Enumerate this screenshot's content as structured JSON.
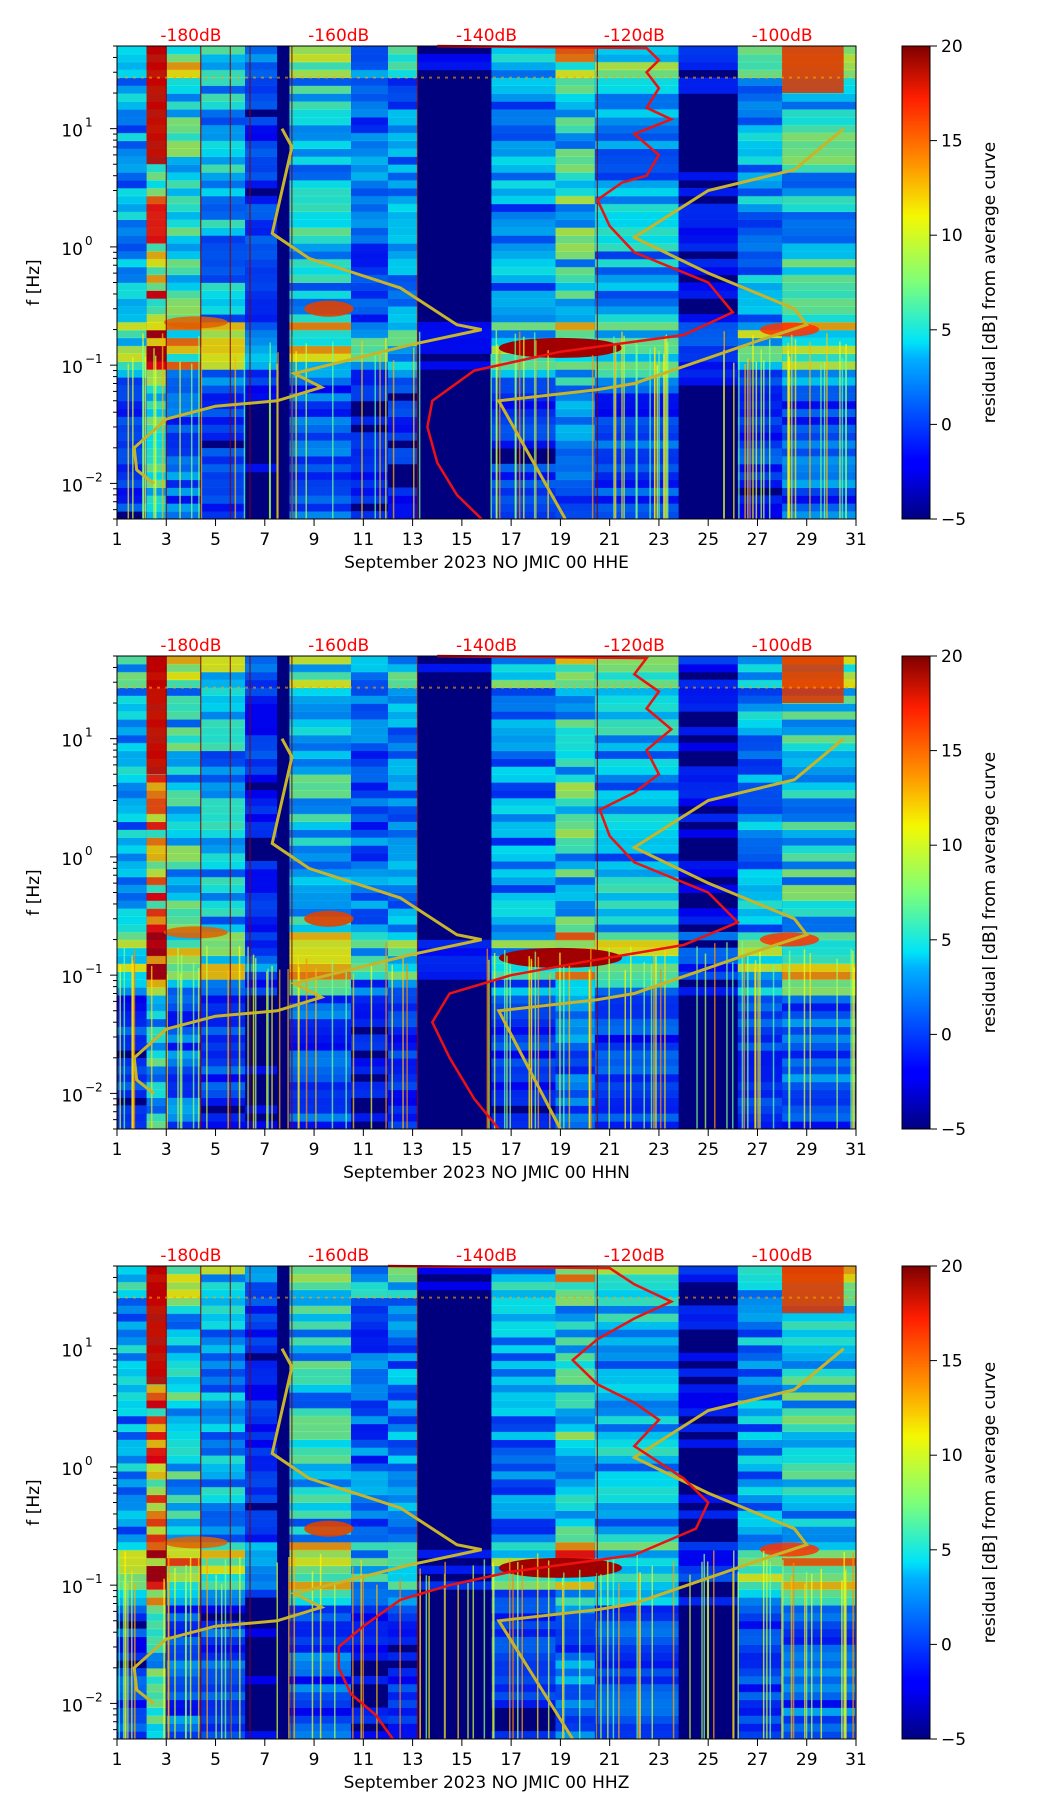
{
  "colors": {
    "psd_curve": "#ee1111",
    "noise_model": "#c8b428",
    "db_label": "#ff0000",
    "colormap": "jet"
  },
  "chart_data": [
    {
      "type": "heatmap",
      "xlabel": "September 2023 NO JMIC 00 HHE",
      "ylabel": "f [Hz]",
      "xlim": [
        1,
        31
      ],
      "ylim": [
        0.005,
        50
      ],
      "yscale": "log",
      "x_ticks": [
        "1",
        "3",
        "5",
        "7",
        "9",
        "11",
        "13",
        "15",
        "17",
        "19",
        "21",
        "23",
        "25",
        "27",
        "29",
        "31"
      ],
      "y_ticks": [
        {
          "value": 10,
          "label": "10",
          "exp": "1"
        },
        {
          "value": 1,
          "label": "10",
          "exp": "0"
        },
        {
          "value": 0.1,
          "label": "10",
          "exp": "−1"
        },
        {
          "value": 0.01,
          "label": "10",
          "exp": "−2"
        }
      ],
      "top_db_labels": [
        "-180dB",
        "-160dB",
        "-140dB",
        "-120dB",
        "-100dB"
      ],
      "top_db_positions": [
        4,
        10,
        16,
        22,
        28
      ],
      "colorbar": {
        "label": "residual [dB] from average curve",
        "min": -5,
        "max": 20,
        "ticks": [
          "20",
          "15",
          "10",
          "5",
          "0",
          "−5"
        ]
      },
      "red_curve": [
        [
          15.8,
          0.005
        ],
        [
          14.8,
          0.008
        ],
        [
          14,
          0.015
        ],
        [
          13.6,
          0.03
        ],
        [
          13.8,
          0.05
        ],
        [
          15.5,
          0.09
        ],
        [
          19,
          0.13
        ],
        [
          24,
          0.18
        ],
        [
          26,
          0.28
        ],
        [
          25,
          0.5
        ],
        [
          22,
          0.9
        ],
        [
          21,
          1.5
        ],
        [
          20.5,
          2.5
        ],
        [
          21.5,
          3.5
        ],
        [
          22.5,
          4
        ],
        [
          23,
          6
        ],
        [
          22,
          9
        ],
        [
          23.5,
          12
        ],
        [
          22.5,
          15
        ],
        [
          23,
          22
        ],
        [
          22.5,
          30
        ],
        [
          23,
          38
        ],
        [
          22.5,
          48
        ],
        [
          14,
          50
        ]
      ],
      "yellow_curve": [
        [
          19.2,
          0.005
        ],
        [
          16.5,
          0.05
        ],
        [
          20.5,
          0.062
        ],
        [
          22,
          0.07
        ],
        [
          27,
          0.16
        ],
        [
          29,
          0.22
        ],
        [
          28.5,
          0.3
        ],
        [
          25,
          0.6
        ],
        [
          22,
          1.2
        ],
        [
          25,
          3
        ],
        [
          28.5,
          4.5
        ],
        [
          30.5,
          10
        ]
      ],
      "yellow_curve_left": [
        [
          7.7,
          10
        ],
        [
          8.1,
          7
        ],
        [
          7.3,
          1.3
        ],
        [
          8.8,
          0.8
        ],
        [
          12.5,
          0.45
        ],
        [
          14.8,
          0.22
        ],
        [
          15.8,
          0.2
        ],
        [
          13,
          0.15
        ],
        [
          8.2,
          0.085
        ],
        [
          9.3,
          0.065
        ],
        [
          7.5,
          0.05
        ],
        [
          5,
          0.045
        ],
        [
          3,
          0.035
        ],
        [
          1.7,
          0.02
        ],
        [
          1.8,
          0.013
        ],
        [
          2.5,
          0.01
        ]
      ]
    },
    {
      "type": "heatmap",
      "xlabel": "September 2023 NO JMIC 00 HHN",
      "ylabel": "f [Hz]",
      "xlim": [
        1,
        31
      ],
      "ylim": [
        0.005,
        50
      ],
      "yscale": "log",
      "x_ticks": [
        "1",
        "3",
        "5",
        "7",
        "9",
        "11",
        "13",
        "15",
        "17",
        "19",
        "21",
        "23",
        "25",
        "27",
        "29",
        "31"
      ],
      "y_ticks": [
        {
          "value": 10,
          "label": "10",
          "exp": "1"
        },
        {
          "value": 1,
          "label": "10",
          "exp": "0"
        },
        {
          "value": 0.1,
          "label": "10",
          "exp": "−1"
        },
        {
          "value": 0.01,
          "label": "10",
          "exp": "−2"
        }
      ],
      "top_db_labels": [
        "-180dB",
        "-160dB",
        "-140dB",
        "-120dB",
        "-100dB"
      ],
      "top_db_positions": [
        4,
        10,
        16,
        22,
        28
      ],
      "colorbar": {
        "label": "residual [dB] from average curve",
        "min": -5,
        "max": 20,
        "ticks": [
          "20",
          "15",
          "10",
          "5",
          "0",
          "−5"
        ]
      },
      "red_curve": [
        [
          16.5,
          0.005
        ],
        [
          15.5,
          0.009
        ],
        [
          14.5,
          0.02
        ],
        [
          13.8,
          0.04
        ],
        [
          14.5,
          0.07
        ],
        [
          17,
          0.1
        ],
        [
          20,
          0.13
        ],
        [
          24,
          0.18
        ],
        [
          26.2,
          0.28
        ],
        [
          25,
          0.5
        ],
        [
          22,
          0.9
        ],
        [
          21,
          1.5
        ],
        [
          20.6,
          2.5
        ],
        [
          22,
          3.5
        ],
        [
          23,
          5
        ],
        [
          22.5,
          8
        ],
        [
          23.5,
          12
        ],
        [
          22.5,
          18
        ],
        [
          23,
          25
        ],
        [
          22,
          35
        ],
        [
          22.5,
          48
        ],
        [
          14,
          50
        ]
      ],
      "yellow_curve": [
        [
          19,
          0.005
        ],
        [
          16.5,
          0.05
        ],
        [
          20.5,
          0.062
        ],
        [
          22,
          0.07
        ],
        [
          27,
          0.16
        ],
        [
          29,
          0.22
        ],
        [
          28.5,
          0.3
        ],
        [
          25,
          0.6
        ],
        [
          22,
          1.2
        ],
        [
          25,
          3
        ],
        [
          28.5,
          4.5
        ],
        [
          30.5,
          10
        ]
      ],
      "yellow_curve_left": [
        [
          7.7,
          10
        ],
        [
          8.1,
          7
        ],
        [
          7.3,
          1.3
        ],
        [
          8.8,
          0.8
        ],
        [
          12.5,
          0.45
        ],
        [
          14.8,
          0.22
        ],
        [
          15.8,
          0.2
        ],
        [
          13,
          0.15
        ],
        [
          8.2,
          0.085
        ],
        [
          9.3,
          0.065
        ],
        [
          7.5,
          0.05
        ],
        [
          5,
          0.045
        ],
        [
          3,
          0.035
        ],
        [
          1.7,
          0.02
        ],
        [
          1.8,
          0.013
        ],
        [
          2.5,
          0.01
        ]
      ]
    },
    {
      "type": "heatmap",
      "xlabel": "September 2023 NO JMIC 00 HHZ",
      "ylabel": "f [Hz]",
      "xlim": [
        1,
        31
      ],
      "ylim": [
        0.005,
        50
      ],
      "yscale": "log",
      "x_ticks": [
        "1",
        "3",
        "5",
        "7",
        "9",
        "11",
        "13",
        "15",
        "17",
        "19",
        "21",
        "23",
        "25",
        "27",
        "29",
        "31"
      ],
      "y_ticks": [
        {
          "value": 10,
          "label": "10",
          "exp": "1"
        },
        {
          "value": 1,
          "label": "10",
          "exp": "0"
        },
        {
          "value": 0.1,
          "label": "10",
          "exp": "−1"
        },
        {
          "value": 0.01,
          "label": "10",
          "exp": "−2"
        }
      ],
      "top_db_labels": [
        "-180dB",
        "-160dB",
        "-140dB",
        "-120dB",
        "-100dB"
      ],
      "top_db_positions": [
        4,
        10,
        16,
        22,
        28
      ],
      "colorbar": {
        "label": "residual [dB] from average curve",
        "min": -5,
        "max": 20,
        "ticks": [
          "20",
          "15",
          "10",
          "5",
          "0",
          "−5"
        ]
      },
      "red_curve": [
        [
          12.2,
          0.005
        ],
        [
          11.5,
          0.008
        ],
        [
          10.5,
          0.012
        ],
        [
          10,
          0.02
        ],
        [
          10,
          0.03
        ],
        [
          11,
          0.045
        ],
        [
          12.5,
          0.075
        ],
        [
          14.5,
          0.1
        ],
        [
          17,
          0.13
        ],
        [
          22,
          0.18
        ],
        [
          24.5,
          0.3
        ],
        [
          25,
          0.5
        ],
        [
          24,
          0.8
        ],
        [
          22,
          1.5
        ],
        [
          23,
          2.5
        ],
        [
          22,
          3.5
        ],
        [
          20.5,
          5
        ],
        [
          19.5,
          8
        ],
        [
          20.5,
          12
        ],
        [
          22,
          18
        ],
        [
          23.5,
          25
        ],
        [
          22,
          35
        ],
        [
          21,
          48
        ],
        [
          12,
          50
        ]
      ],
      "yellow_curve": [
        [
          19.5,
          0.005
        ],
        [
          16.5,
          0.05
        ],
        [
          20.5,
          0.062
        ],
        [
          22,
          0.07
        ],
        [
          27,
          0.16
        ],
        [
          29,
          0.22
        ],
        [
          28.5,
          0.3
        ],
        [
          25,
          0.6
        ],
        [
          22,
          1.2
        ],
        [
          25,
          3
        ],
        [
          28.5,
          4.5
        ],
        [
          30.5,
          10
        ]
      ],
      "yellow_curve_left": [
        [
          7.7,
          10
        ],
        [
          8.1,
          7
        ],
        [
          7.3,
          1.3
        ],
        [
          8.8,
          0.8
        ],
        [
          12.5,
          0.45
        ],
        [
          14.8,
          0.22
        ],
        [
          15.8,
          0.2
        ],
        [
          13,
          0.15
        ],
        [
          8.2,
          0.085
        ],
        [
          9.3,
          0.065
        ],
        [
          7.5,
          0.05
        ],
        [
          5,
          0.045
        ],
        [
          3,
          0.035
        ],
        [
          1.7,
          0.02
        ],
        [
          1.8,
          0.013
        ],
        [
          2.5,
          0.01
        ]
      ]
    }
  ]
}
